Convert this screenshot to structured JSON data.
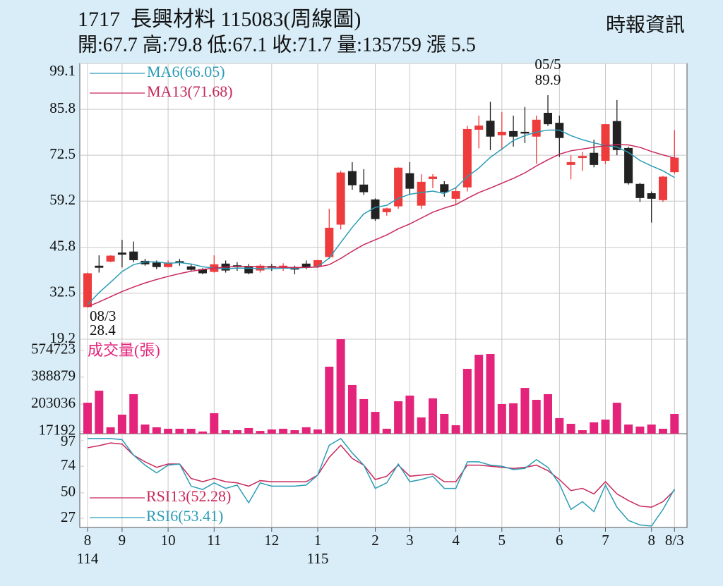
{
  "header": {
    "title": "1717  長興材料 115083(周線圖)",
    "source": "時報資訊",
    "quote": "開:67.7 高:79.8 低:67.1 收:71.7 量:135759 漲 5.5"
  },
  "chart_data": [
    {
      "type": "candlestick",
      "open": [
        28.6,
        40.4,
        41.8,
        44.2,
        44.5,
        41.8,
        41.3,
        40.2,
        41.7,
        40.2,
        39.4,
        38.8,
        41.0,
        40.5,
        40.2,
        39.2,
        40.3,
        40.3,
        39.8,
        41.0,
        40.4,
        43.1,
        52.5,
        67.8,
        63.9,
        59.6,
        56.1,
        57.8,
        67.2,
        58.0,
        65.7,
        64.0,
        60.0,
        63.3,
        80.0,
        82.4,
        78.4,
        79.4,
        79.2,
        78.0,
        84.7,
        81.8,
        69.8,
        71.8,
        73.1,
        71.0,
        82.3,
        74.5,
        64.1,
        61.4,
        59.6,
        67.7
      ],
      "high": [
        38.5,
        43.5,
        43.5,
        48,
        47.5,
        42.5,
        42,
        42,
        42.5,
        41,
        39.8,
        43.5,
        42,
        41.5,
        41,
        41,
        41,
        41.2,
        40.5,
        42,
        42.2,
        57,
        68,
        70.5,
        68.5,
        60,
        57.3,
        69,
        70.5,
        67,
        67,
        65,
        63,
        81,
        84,
        88,
        85,
        84,
        86.5,
        84,
        89.9,
        84,
        72.5,
        73.5,
        77,
        81.5,
        88.5,
        75,
        64.5,
        62,
        66.5,
        79.8
      ],
      "low": [
        28.4,
        38.5,
        41.5,
        40,
        41.5,
        40.5,
        39.5,
        40,
        40.5,
        38.8,
        38,
        38.5,
        38.5,
        39,
        38,
        38.5,
        39,
        39,
        38,
        39.5,
        39.8,
        42.5,
        51,
        62.5,
        61,
        53.5,
        55,
        57,
        61,
        57,
        63,
        60.5,
        58,
        62,
        74.5,
        74,
        74,
        75,
        76,
        70,
        81,
        72,
        65.5,
        68,
        69,
        70,
        72.5,
        64,
        59,
        53,
        59,
        67.1
      ],
      "close": [
        38.2,
        40.0,
        43.3,
        43.8,
        42.2,
        41.0,
        40.2,
        41.3,
        41.5,
        39.4,
        38.4,
        40.8,
        39.2,
        40.3,
        38.4,
        40.4,
        40.1,
        40.4,
        39.6,
        40.2,
        42.0,
        51.4,
        67.4,
        63.9,
        61.9,
        54.1,
        57.0,
        68.8,
        62.9,
        64.7,
        66.2,
        61.9,
        62.0,
        80.0,
        81.0,
        78.0,
        79.2,
        78.0,
        79.0,
        82.7,
        81.6,
        77.6,
        70.4,
        72.2,
        69.8,
        81.4,
        74.1,
        64.5,
        60.2,
        60.0,
        66.2,
        71.7
      ],
      "up_color": "#ee3b3b",
      "down_color": "#222222",
      "series": [
        {
          "name": "MA6(66.05)",
          "color": "#2b9cb6",
          "values": [
            29.2,
            32.7,
            35.7,
            38.8,
            40.8,
            41.6,
            41.6,
            41.2,
            41.4,
            41.0,
            40.2,
            39.8,
            39.6,
            39.8,
            39.8,
            39.6,
            39.6,
            39.8,
            39.8,
            40.0,
            40.2,
            42.7,
            47.2,
            51.6,
            55.5,
            57.4,
            58.0,
            60.0,
            61.2,
            61.7,
            62.1,
            61.4,
            63.1,
            66.3,
            68.8,
            71.9,
            74.3,
            76.8,
            78.2,
            79.2,
            79.8,
            79.8,
            78.2,
            77.0,
            76.1,
            75.3,
            74.9,
            73.3,
            71.0,
            69.4,
            68.0,
            66.05
          ]
        },
        {
          "name": "MA13(71.68)",
          "color": "#c8285a",
          "values": [
            28.6,
            30.0,
            31.5,
            33.0,
            34.3,
            35.5,
            36.5,
            37.4,
            38.2,
            38.9,
            39.4,
            39.8,
            40.1,
            40.3,
            40.3,
            40.2,
            40.1,
            40.0,
            40.0,
            40.0,
            40.1,
            40.8,
            42.6,
            44.7,
            46.6,
            48.0,
            49.4,
            51.2,
            52.6,
            54.3,
            56.0,
            57.2,
            58.2,
            60.0,
            61.7,
            63.0,
            64.4,
            65.8,
            67.4,
            69.4,
            71.2,
            72.8,
            73.8,
            74.3,
            74.8,
            75.3,
            75.6,
            75.5,
            74.8,
            73.6,
            72.6,
            71.68
          ]
        }
      ],
      "annotations": [
        {
          "date": "08/3",
          "value": 28.4
        },
        {
          "date": "05/5",
          "value": 89.9
        }
      ],
      "ylim": [
        19.2,
        99.1
      ],
      "yticks": [
        19.2,
        32.5,
        45.8,
        59.2,
        72.5,
        85.8,
        99.1
      ],
      "grid": true
    },
    {
      "type": "bar",
      "title": "成交量(張)",
      "color": "#e4237a",
      "values": [
        213000,
        296000,
        44000,
        131000,
        272000,
        63000,
        44000,
        34000,
        34000,
        34000,
        15000,
        141000,
        24000,
        24000,
        39000,
        19000,
        29000,
        34000,
        24000,
        44000,
        29000,
        461000,
        650000,
        335000,
        238000,
        150000,
        34000,
        223000,
        262000,
        112000,
        243000,
        136000,
        58000,
        446000,
        543000,
        548000,
        204000,
        209000,
        315000,
        233000,
        272000,
        107000,
        68000,
        24000,
        78000,
        97000,
        213000,
        63000,
        49000,
        63000,
        34000,
        135759
      ],
      "ylim": [
        0,
        650000
      ],
      "yticks": [
        17192,
        203036,
        388879,
        574723
      ]
    },
    {
      "type": "line",
      "categories": [
        "8",
        null,
        null,
        "9",
        null,
        null,
        null,
        "10",
        null,
        null,
        null,
        "11",
        null,
        null,
        null,
        null,
        "12",
        null,
        null,
        null,
        "1",
        null,
        null,
        null,
        null,
        "2",
        null,
        null,
        "3",
        null,
        null,
        null,
        "4",
        null,
        null,
        null,
        "5",
        null,
        null,
        null,
        null,
        "6",
        null,
        null,
        null,
        "7",
        null,
        null,
        null,
        "8",
        null,
        "8/3"
      ],
      "year_labels": [
        "114",
        null,
        null,
        null,
        null,
        null,
        null,
        null,
        null,
        null,
        null,
        null,
        null,
        null,
        null,
        null,
        null,
        null,
        null,
        null,
        "115",
        null,
        null,
        null,
        null,
        null,
        null,
        null,
        null,
        null,
        null,
        null,
        null,
        null,
        null,
        null,
        null,
        null,
        null,
        null,
        null,
        null,
        null,
        null,
        null,
        null,
        null,
        null,
        null,
        null,
        null,
        null
      ],
      "series": [
        {
          "name": "RSI13(52.28)",
          "color": "#c8285a",
          "values": [
            90.7,
            92.6,
            95,
            94,
            84,
            78,
            73,
            76,
            76,
            63,
            60,
            63,
            60,
            59,
            56,
            61,
            60,
            60,
            60,
            60,
            66,
            82,
            93,
            81,
            75,
            62,
            65,
            75,
            65,
            66,
            67,
            60,
            60,
            75,
            75,
            74,
            73,
            72,
            73,
            75,
            70,
            62,
            52,
            54,
            49,
            60,
            49,
            43,
            38,
            37,
            42,
            52.28
          ]
        },
        {
          "name": "RSI6(53.41)",
          "color": "#2b9cb6",
          "values": [
            99,
            99,
            99,
            98,
            84,
            75,
            68,
            75,
            76,
            56,
            53,
            59,
            54,
            57,
            41,
            59,
            56,
            56,
            56,
            57,
            66,
            93,
            99,
            86,
            75,
            54,
            59,
            76,
            60,
            62,
            65,
            54,
            54,
            78,
            78,
            75,
            74,
            71,
            72,
            80,
            73,
            58,
            35,
            42,
            33,
            57,
            37,
            25,
            21,
            20,
            35,
            53.41
          ]
        }
      ],
      "ylim": [
        18.7,
        103.4
      ],
      "yticks": [
        27,
        50,
        74,
        97
      ]
    }
  ]
}
